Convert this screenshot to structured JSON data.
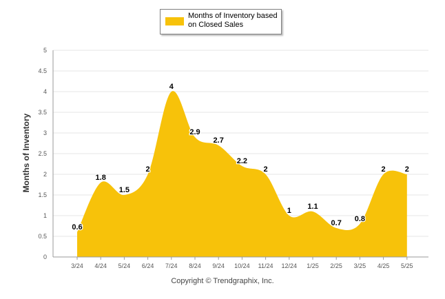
{
  "legend": {
    "line1": "Months of Inventory based",
    "line2": "on Closed Sales"
  },
  "footer": "Copyright © Trendgraphix, Inc.",
  "colors": {
    "fill": "#F7C20A",
    "grid": "#e6e6e6",
    "axis": "#999999"
  },
  "chart_data": {
    "type": "area",
    "ylabel": "Months of Inventory",
    "xlabel": "",
    "categories": [
      "3/24",
      "4/24",
      "5/24",
      "6/24",
      "7/24",
      "8/24",
      "9/24",
      "10/24",
      "11/24",
      "12/24",
      "1/25",
      "2/25",
      "3/25",
      "4/25",
      "5/25"
    ],
    "series": [
      {
        "name": "Months of Inventory based on Closed Sales",
        "values": [
          0.6,
          1.8,
          1.5,
          2,
          4,
          2.9,
          2.7,
          2.2,
          2,
          1,
          1.1,
          0.7,
          0.8,
          2,
          2
        ]
      }
    ],
    "data_labels": [
      "0.6",
      "1.8",
      "1.5",
      "2",
      "4",
      "2.9",
      "2.7",
      "2.2",
      "2",
      "1",
      "1.1",
      "0.7",
      "0.8",
      "2",
      "2"
    ],
    "ylim": [
      0,
      5
    ],
    "yticks": [
      "0",
      "0.5",
      "1",
      "1.5",
      "2",
      "2.5",
      "3",
      "3.5",
      "4",
      "4.5",
      "5"
    ],
    "grid": true,
    "smooth": true,
    "legend_position": "top-center"
  }
}
